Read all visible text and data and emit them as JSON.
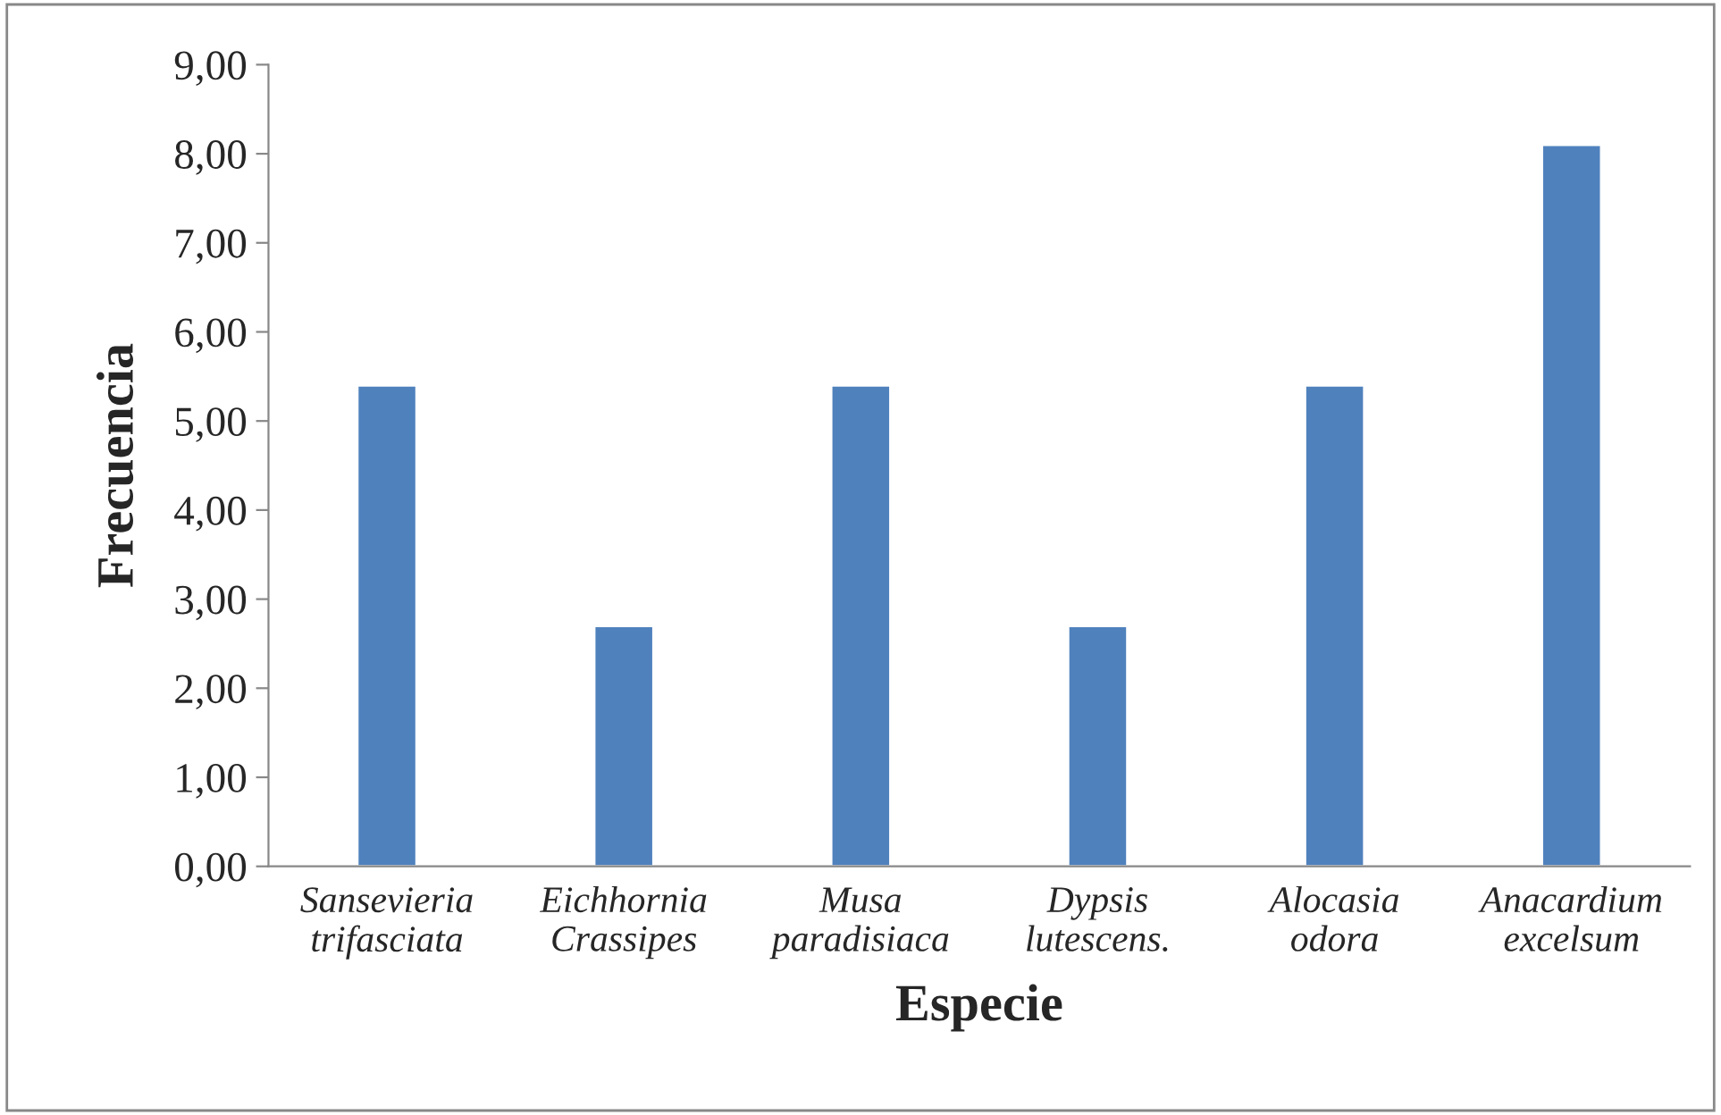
{
  "chart_data": {
    "type": "bar",
    "xlabel": "Especie",
    "ylabel": "Frecuencia",
    "categories": [
      "Sansevieria\ntrifasciata",
      "Eichhornia\nCrassipes",
      "Musa\nparadisiaca",
      "Dypsis\nlutescens.",
      "Alocasia\nodora",
      "Anacardium\nexcelsum"
    ],
    "values": [
      5.4,
      2.7,
      5.4,
      2.7,
      5.4,
      8.1
    ],
    "color": "#4f81bd",
    "ylim": [
      0,
      9
    ],
    "yticks": [
      {
        "value": 0,
        "label": "0,00"
      },
      {
        "value": 1,
        "label": "1,00"
      },
      {
        "value": 2,
        "label": "2,00"
      },
      {
        "value": 3,
        "label": "3,00"
      },
      {
        "value": 4,
        "label": "4,00"
      },
      {
        "value": 5,
        "label": "5,00"
      },
      {
        "value": 6,
        "label": "6,00"
      },
      {
        "value": 7,
        "label": "7,00"
      },
      {
        "value": 8,
        "label": "8,00"
      },
      {
        "value": 9,
        "label": "9,00"
      }
    ],
    "grid": false,
    "legend": false
  }
}
